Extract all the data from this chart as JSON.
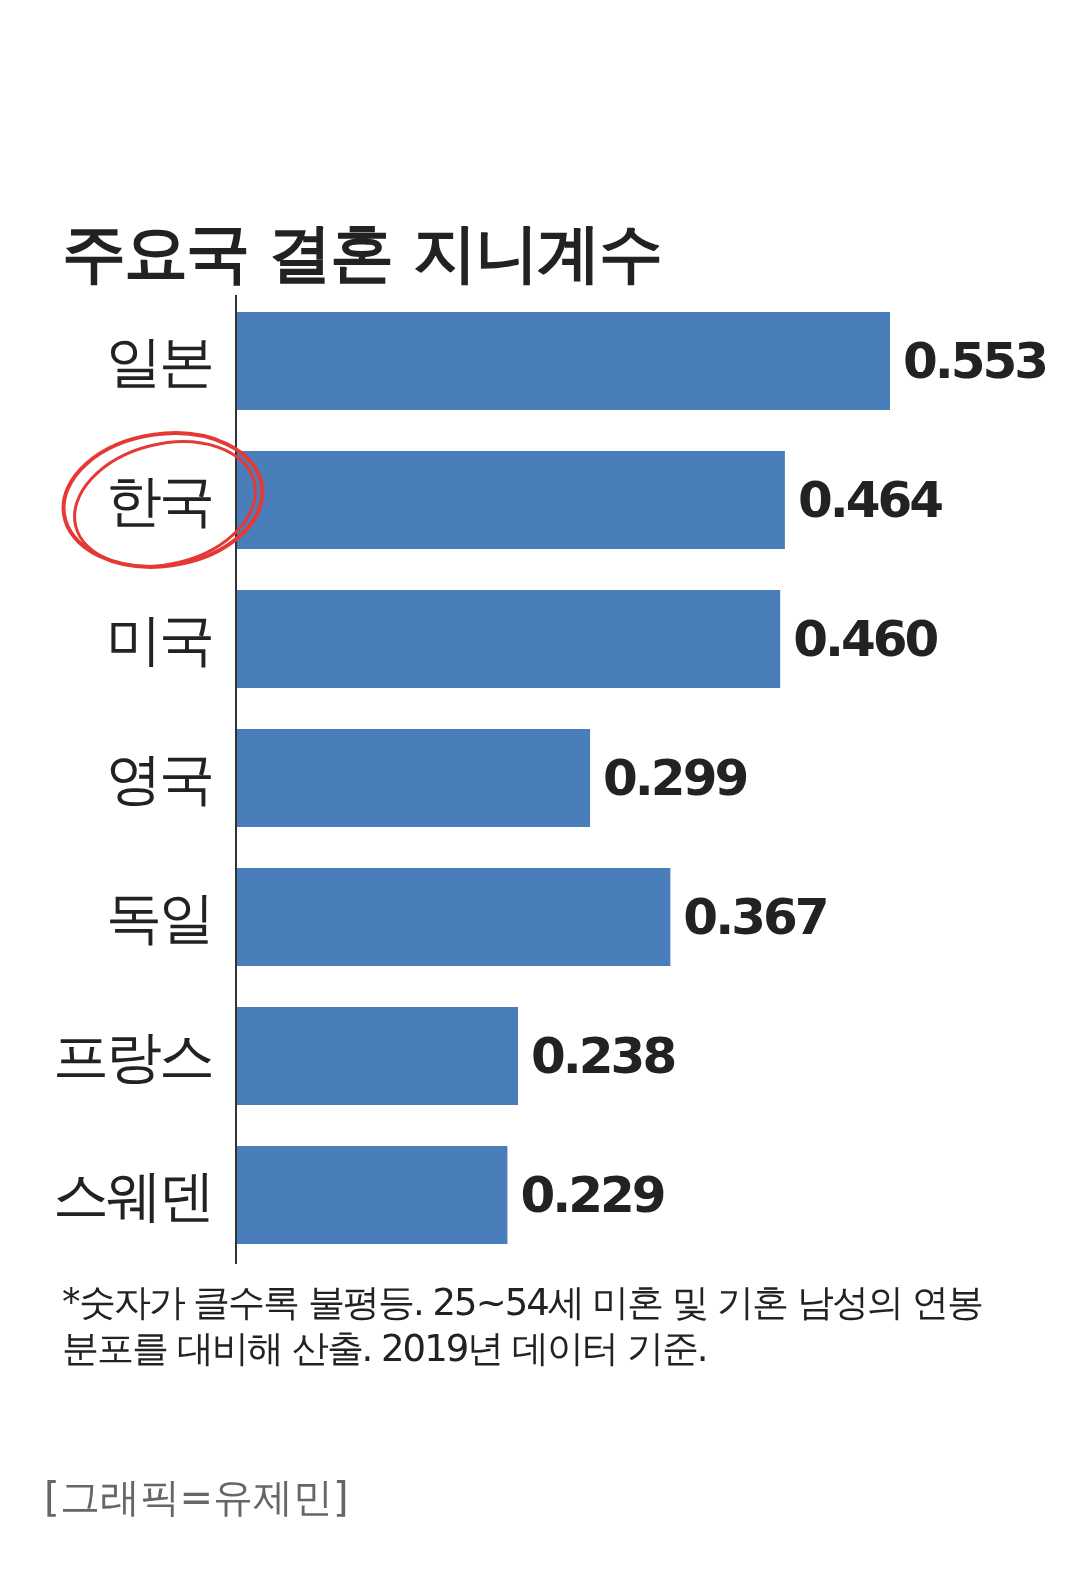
{
  "chart_data": {
    "type": "bar",
    "orientation": "horizontal",
    "title": "주요국 결혼 지니계수",
    "categories": [
      "일본",
      "한국",
      "미국",
      "영국",
      "독일",
      "프랑스",
      "스웨덴"
    ],
    "values": [
      0.553,
      0.464,
      0.46,
      0.299,
      0.367,
      0.238,
      0.229
    ],
    "color": "#4a7ebb",
    "value_labels": [
      "0.553",
      "0.464",
      "0.460",
      "0.299",
      "0.367",
      "0.238",
      "0.229"
    ],
    "annotations": [
      "*숫자가 클수록 불평등. 25~54세 미혼 및 기혼 남성의 연봉 분포를 대비해 산출. 2019년 데이터 기준.",
      "[그래픽=유제민]"
    ]
  }
}
